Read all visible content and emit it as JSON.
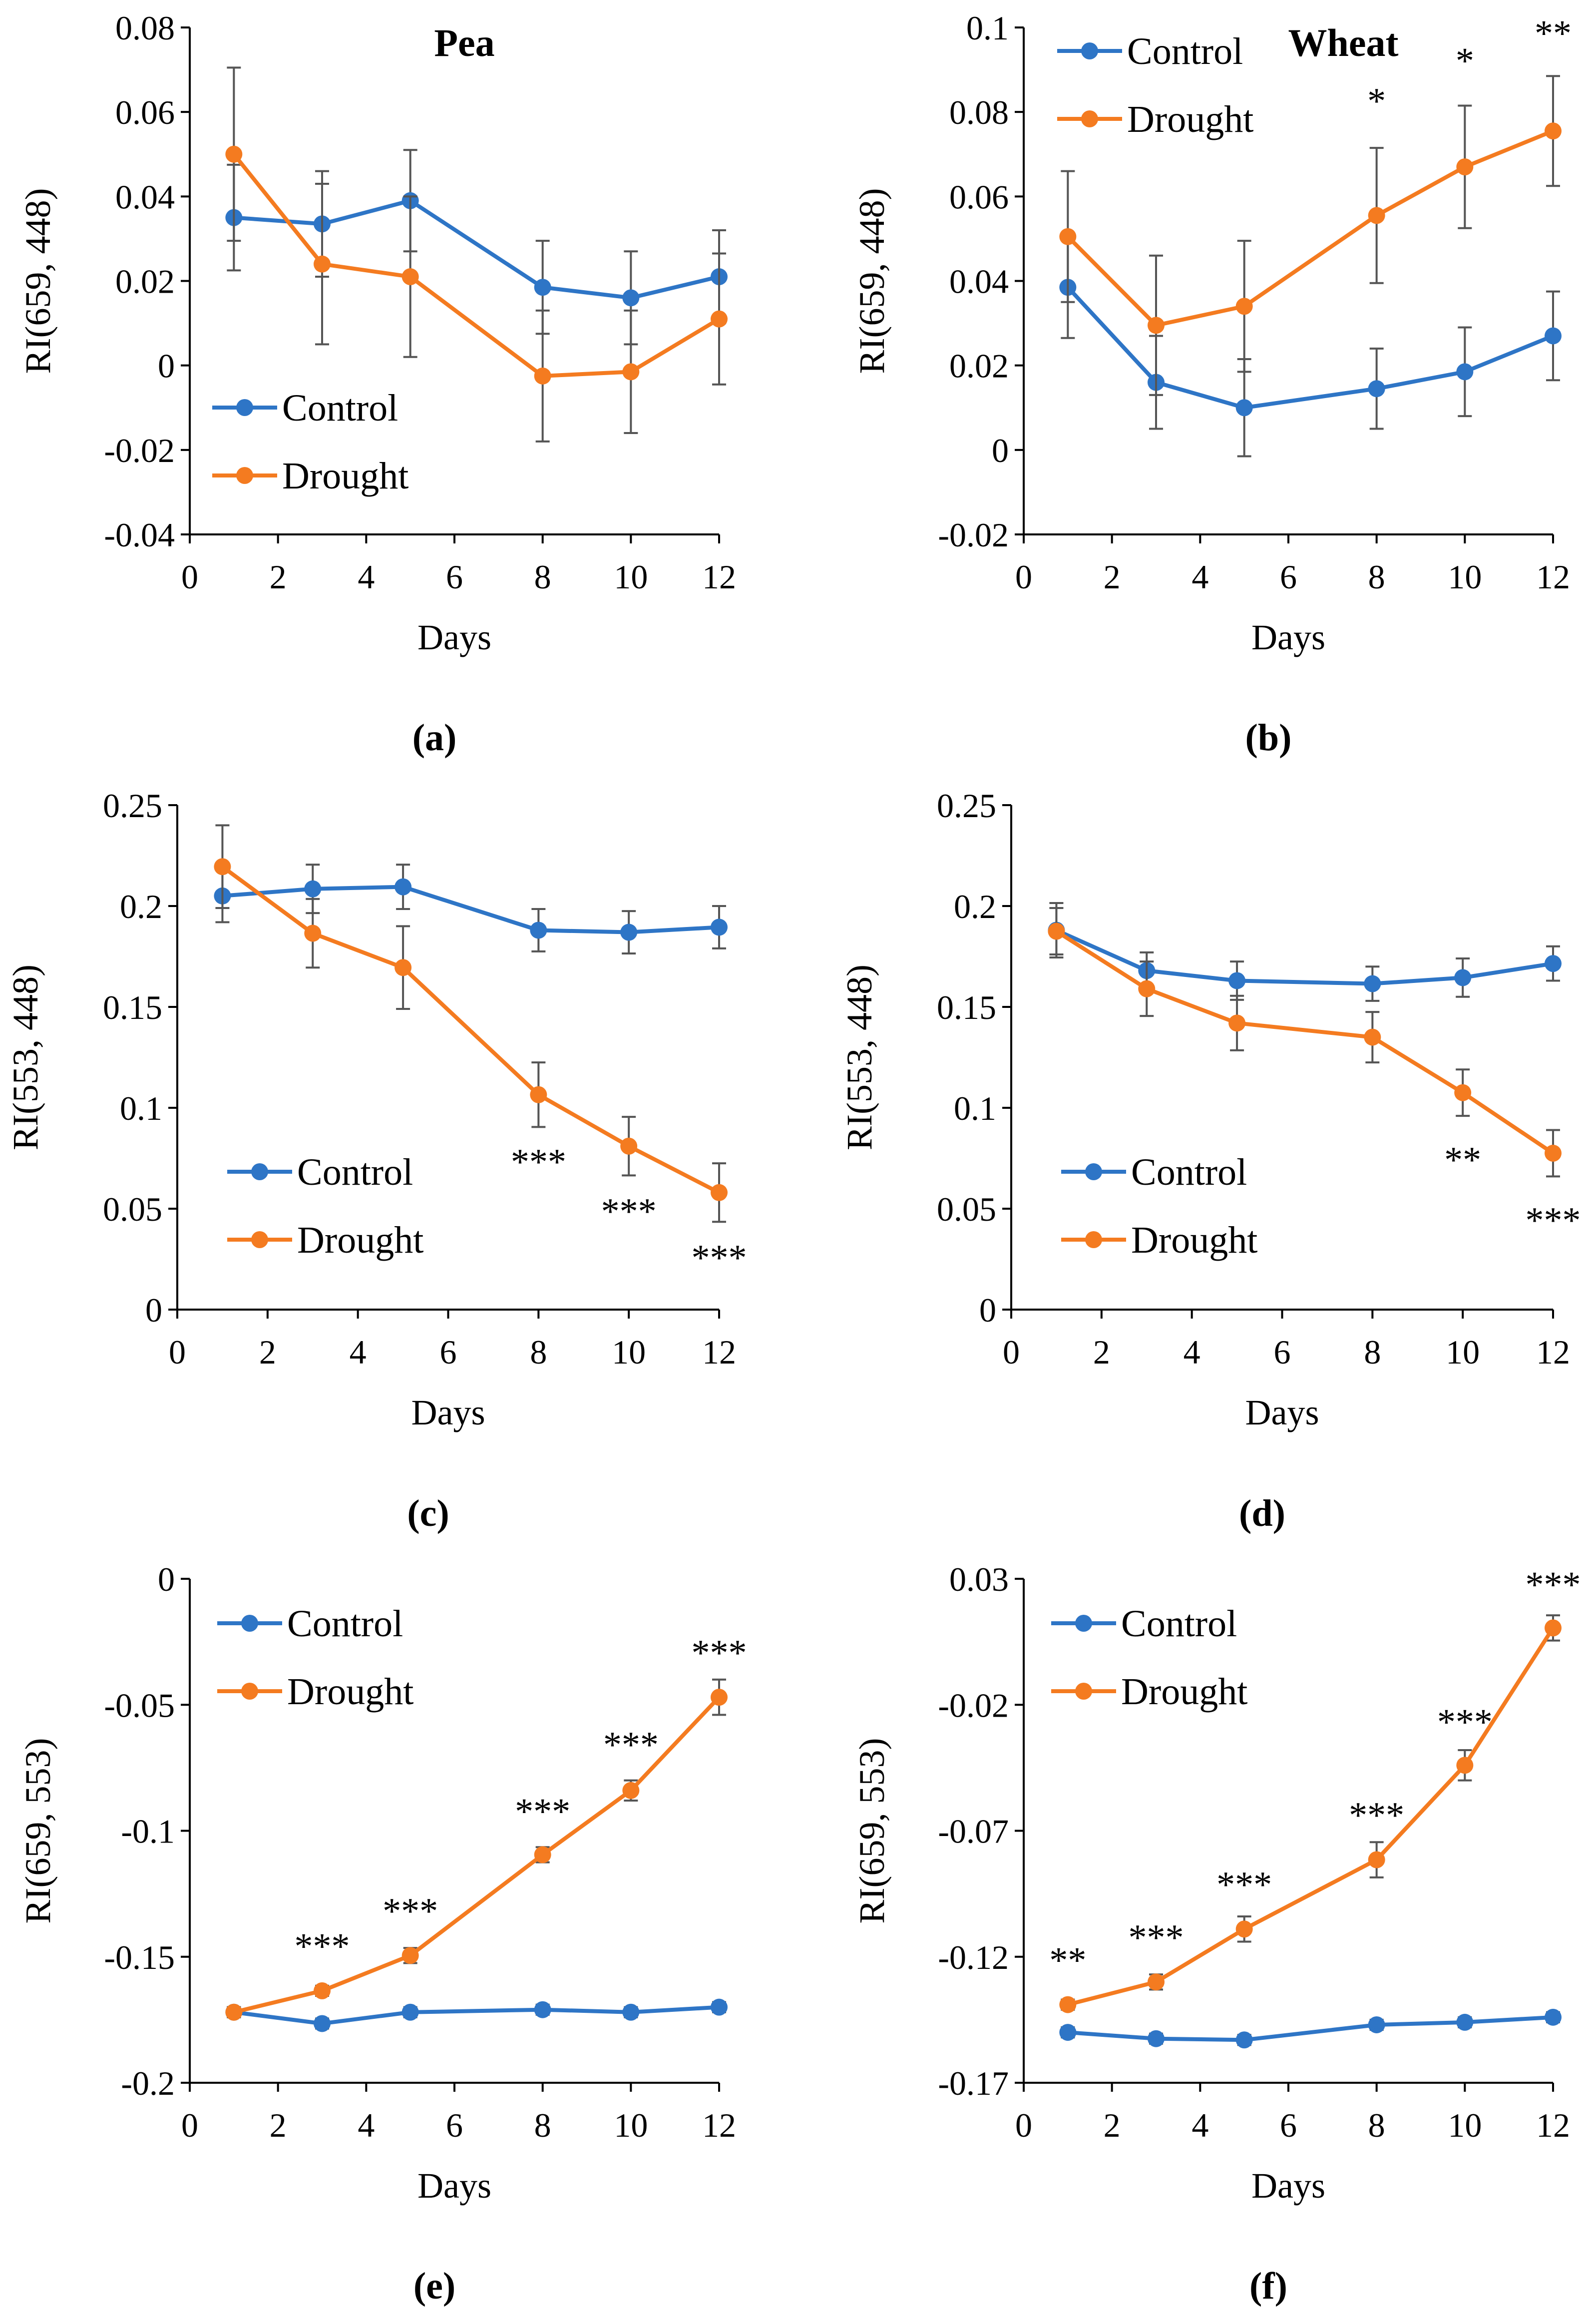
{
  "figure": {
    "colors": {
      "control": "#2e75c6",
      "drought": "#f47b20",
      "axis": "#000000",
      "errorbar": "#555555"
    },
    "panels": [
      {
        "id": "a",
        "caption": "(a)",
        "title": "Pea",
        "legend": {
          "entries": [
            "Control",
            "Drought"
          ],
          "placement": "bottom-left"
        },
        "chart_data": {
          "type": "line",
          "title": "Pea",
          "xlabel": "Days",
          "ylabel": "RI(659, 448)",
          "xlim": [
            0,
            12
          ],
          "ylim": [
            -0.04,
            0.08
          ],
          "xticks": [
            "0",
            "2",
            "4",
            "6",
            "8",
            "10",
            "12"
          ],
          "yticks": [
            "-0.04",
            "-0.02",
            "0",
            "0.02",
            "0.04",
            "0.06",
            "0.08"
          ],
          "x": [
            1,
            3,
            5,
            8,
            10,
            12
          ],
          "series": [
            {
              "name": "Control",
              "values": [
                0.035,
                0.0335,
                0.039,
                0.0185,
                0.016,
                0.021
              ],
              "errors": [
                0.0125,
                0.0125,
                0.012,
                0.011,
                0.011,
                0.011
              ]
            },
            {
              "name": "Drought",
              "values": [
                0.05,
                0.024,
                0.021,
                -0.0025,
                -0.0015,
                0.011
              ],
              "errors": [
                0.0205,
                0.019,
                0.019,
                0.0155,
                0.0145,
                0.0155
              ]
            }
          ],
          "annotations": []
        }
      },
      {
        "id": "b",
        "caption": "(b)",
        "title": "Wheat",
        "legend": {
          "entries": [
            "Control",
            "Drought"
          ],
          "placement": "top-left"
        },
        "chart_data": {
          "type": "line",
          "title": "Wheat",
          "xlabel": "Days",
          "ylabel": "RI(659, 448)",
          "xlim": [
            0,
            12
          ],
          "ylim": [
            -0.02,
            0.1
          ],
          "xticks": [
            "0",
            "2",
            "4",
            "6",
            "8",
            "10",
            "12"
          ],
          "yticks": [
            "-0.02",
            "0",
            "0.02",
            "0.04",
            "0.06",
            "0.08",
            "0.1"
          ],
          "x": [
            1,
            3,
            5,
            8,
            10,
            12
          ],
          "series": [
            {
              "name": "Control",
              "values": [
                0.0385,
                0.016,
                0.01,
                0.0145,
                0.0185,
                0.027
              ],
              "errors": [
                0.012,
                0.011,
                0.0115,
                0.0095,
                0.0105,
                0.0105
              ]
            },
            {
              "name": "Drought",
              "values": [
                0.0505,
                0.0295,
                0.034,
                0.0555,
                0.067,
                0.0755
              ],
              "errors": [
                0.0155,
                0.0165,
                0.0155,
                0.016,
                0.0145,
                0.013
              ]
            }
          ],
          "annotations": [
            {
              "x": 8,
              "text": "*",
              "offset": 0.027
            },
            {
              "x": 10,
              "text": "*",
              "offset": 0.025
            },
            {
              "x": 12,
              "text": "**",
              "offset": 0.023
            }
          ]
        }
      },
      {
        "id": "c",
        "caption": "(c)",
        "title": "",
        "legend": {
          "entries": [
            "Control",
            "Drought"
          ],
          "placement": "bottom-left"
        },
        "chart_data": {
          "type": "line",
          "title": "",
          "xlabel": "Days",
          "ylabel": "RI(553, 448)",
          "xlim": [
            0,
            12
          ],
          "ylim": [
            0,
            0.25
          ],
          "xticks": [
            "0",
            "2",
            "4",
            "6",
            "8",
            "10",
            "12"
          ],
          "yticks": [
            "0",
            "0.05",
            "0.1",
            "0.15",
            "0.2",
            "0.25"
          ],
          "x": [
            1,
            3,
            5,
            8,
            10,
            12
          ],
          "series": [
            {
              "name": "Control",
              "values": [
                0.205,
                0.2085,
                0.2095,
                0.188,
                0.187,
                0.1895
              ],
              "errors": [
                0.013,
                0.012,
                0.011,
                0.0105,
                0.0105,
                0.0105
              ]
            },
            {
              "name": "Drought",
              "values": [
                0.2195,
                0.1865,
                0.1695,
                0.1065,
                0.081,
                0.058
              ],
              "errors": [
                0.0205,
                0.017,
                0.0205,
                0.016,
                0.0145,
                0.0145
              ]
            }
          ],
          "annotations": [
            {
              "x": 8,
              "text": "***",
              "offset": -0.0335
            },
            {
              "x": 10,
              "text": "***",
              "offset": -0.0325
            },
            {
              "x": 12,
              "text": "***",
              "offset": -0.0325
            }
          ]
        }
      },
      {
        "id": "d",
        "caption": "(d)",
        "title": "",
        "legend": {
          "entries": [
            "Control",
            "Drought"
          ],
          "placement": "bottom-left"
        },
        "chart_data": {
          "type": "line",
          "title": "",
          "xlabel": "Days",
          "ylabel": "RI(553, 448)",
          "xlim": [
            0,
            12
          ],
          "ylim": [
            0,
            0.25
          ],
          "xticks": [
            "0",
            "2",
            "4",
            "6",
            "8",
            "10",
            "12"
          ],
          "yticks": [
            "0",
            "0.05",
            "0.1",
            "0.15",
            "0.2",
            "0.25"
          ],
          "x": [
            1,
            3,
            5,
            8,
            10,
            12
          ],
          "series": [
            {
              "name": "Control",
              "values": [
                0.188,
                0.168,
                0.163,
                0.1615,
                0.1645,
                0.1715
              ],
              "errors": [
                0.0135,
                0.009,
                0.0095,
                0.0085,
                0.0095,
                0.0085
              ]
            },
            {
              "name": "Drought",
              "values": [
                0.1875,
                0.159,
                0.142,
                0.135,
                0.1075,
                0.0775
              ],
              "errors": [
                0.0115,
                0.0135,
                0.0135,
                0.0125,
                0.0115,
                0.0115
              ]
            }
          ],
          "annotations": [
            {
              "x": 10,
              "text": "**",
              "offset": -0.0335
            },
            {
              "x": 12,
              "text": "***",
              "offset": -0.0335
            }
          ]
        }
      },
      {
        "id": "e",
        "caption": "(e)",
        "title": "",
        "legend": {
          "entries": [
            "Control",
            "Drought"
          ],
          "placement": "top-left"
        },
        "chart_data": {
          "type": "line",
          "title": "",
          "xlabel": "Days",
          "ylabel": "RI(659, 553)",
          "xlim": [
            0,
            12
          ],
          "ylim": [
            -0.2,
            0
          ],
          "xticks": [
            "0",
            "2",
            "4",
            "6",
            "8",
            "10",
            "12"
          ],
          "yticks": [
            "-0.2",
            "-0.15",
            "-0.1",
            "-0.05",
            "0"
          ],
          "x": [
            1,
            3,
            5,
            8,
            10,
            12
          ],
          "series": [
            {
              "name": "Control",
              "values": [
                -0.172,
                -0.1765,
                -0.172,
                -0.171,
                -0.172,
                -0.17
              ],
              "errors": [
                0.002,
                0.002,
                0.002,
                0.002,
                0.002,
                0.002
              ]
            },
            {
              "name": "Drought",
              "values": [
                -0.172,
                -0.1635,
                -0.1495,
                -0.1095,
                -0.084,
                -0.047
              ],
              "errors": [
                0.002,
                0.002,
                0.003,
                0.003,
                0.004,
                0.007
              ]
            }
          ],
          "annotations": [
            {
              "x": 3,
              "text": "***",
              "offset": 0.0175
            },
            {
              "x": 5,
              "text": "***",
              "offset": 0.0175
            },
            {
              "x": 8,
              "text": "***",
              "offset": 0.017
            },
            {
              "x": 10,
              "text": "***",
              "offset": 0.018
            },
            {
              "x": 12,
              "text": "***",
              "offset": 0.0175
            }
          ]
        }
      },
      {
        "id": "f",
        "caption": "(f)",
        "title": "",
        "legend": {
          "entries": [
            "Control",
            "Drought"
          ],
          "placement": "top-left"
        },
        "chart_data": {
          "type": "line",
          "title": "",
          "xlabel": "Days",
          "ylabel": "RI(659, 553)",
          "xlim": [
            0,
            12
          ],
          "ylim": [
            -0.17,
            0.03
          ],
          "xticks": [
            "0",
            "2",
            "4",
            "6",
            "8",
            "10",
            "12"
          ],
          "yticks": [
            "-0.17",
            "-0.12",
            "-0.07",
            "-0.02",
            "0.03"
          ],
          "x": [
            1,
            3,
            5,
            8,
            10,
            12
          ],
          "series": [
            {
              "name": "Control",
              "values": [
                -0.15,
                -0.1525,
                -0.153,
                -0.147,
                -0.146,
                -0.144
              ],
              "errors": [
                0.002,
                0.002,
                0.002,
                0.002,
                0.002,
                0.002
              ]
            },
            {
              "name": "Drought",
              "values": [
                -0.139,
                -0.13,
                -0.109,
                -0.0815,
                -0.044,
                0.0105
              ],
              "errors": [
                0.002,
                0.003,
                0.005,
                0.007,
                0.006,
                0.005
              ]
            }
          ],
          "annotations": [
            {
              "x": 1,
              "text": "**",
              "offset": 0.0175
            },
            {
              "x": 3,
              "text": "***",
              "offset": 0.0175
            },
            {
              "x": 5,
              "text": "***",
              "offset": 0.0175
            },
            {
              "x": 8,
              "text": "***",
              "offset": 0.0175
            },
            {
              "x": 10,
              "text": "***",
              "offset": 0.017
            },
            {
              "x": 12,
              "text": "***",
              "offset": 0.017
            }
          ]
        }
      }
    ]
  }
}
